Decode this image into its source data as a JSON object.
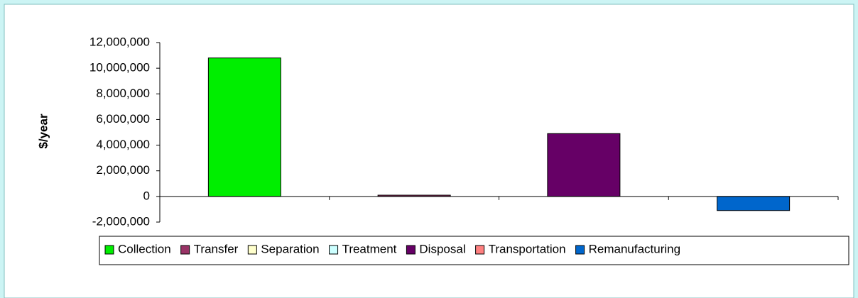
{
  "chart_data": {
    "type": "bar",
    "y_label": "$/year",
    "categories": [
      null,
      null,
      null,
      null
    ],
    "series": [
      {
        "name": "Collection",
        "color": "#00ee00",
        "values": [
          10800000,
          null,
          null,
          null
        ]
      },
      {
        "name": "Transfer",
        "color": "#993366",
        "values": [
          null,
          100000,
          null,
          null
        ]
      },
      {
        "name": "Separation",
        "color": "#ffffcc",
        "values": [
          null,
          null,
          null,
          null
        ]
      },
      {
        "name": "Treatment",
        "color": "#ccffff",
        "values": [
          null,
          null,
          null,
          null
        ]
      },
      {
        "name": "Disposal",
        "color": "#660066",
        "values": [
          null,
          null,
          4900000,
          null
        ]
      },
      {
        "name": "Transportation",
        "color": "#ff8080",
        "values": [
          null,
          null,
          null,
          null
        ]
      },
      {
        "name": "Remanufacturing",
        "color": "#0066cc",
        "values": [
          null,
          null,
          null,
          -1100000
        ]
      }
    ],
    "ylim": [
      -2000000,
      12000000
    ],
    "yticks": [
      {
        "value": -2000000,
        "label": "-2,000,000"
      },
      {
        "value": 0,
        "label": "0"
      },
      {
        "value": 2000000,
        "label": "2,000,000"
      },
      {
        "value": 4000000,
        "label": "4,000,000"
      },
      {
        "value": 6000000,
        "label": "6,000,000"
      },
      {
        "value": 8000000,
        "label": "8,000,000"
      },
      {
        "value": 10000000,
        "label": "10,000,000"
      },
      {
        "value": 12000000,
        "label": "12,000,000"
      }
    ],
    "legend": "bottom"
  }
}
